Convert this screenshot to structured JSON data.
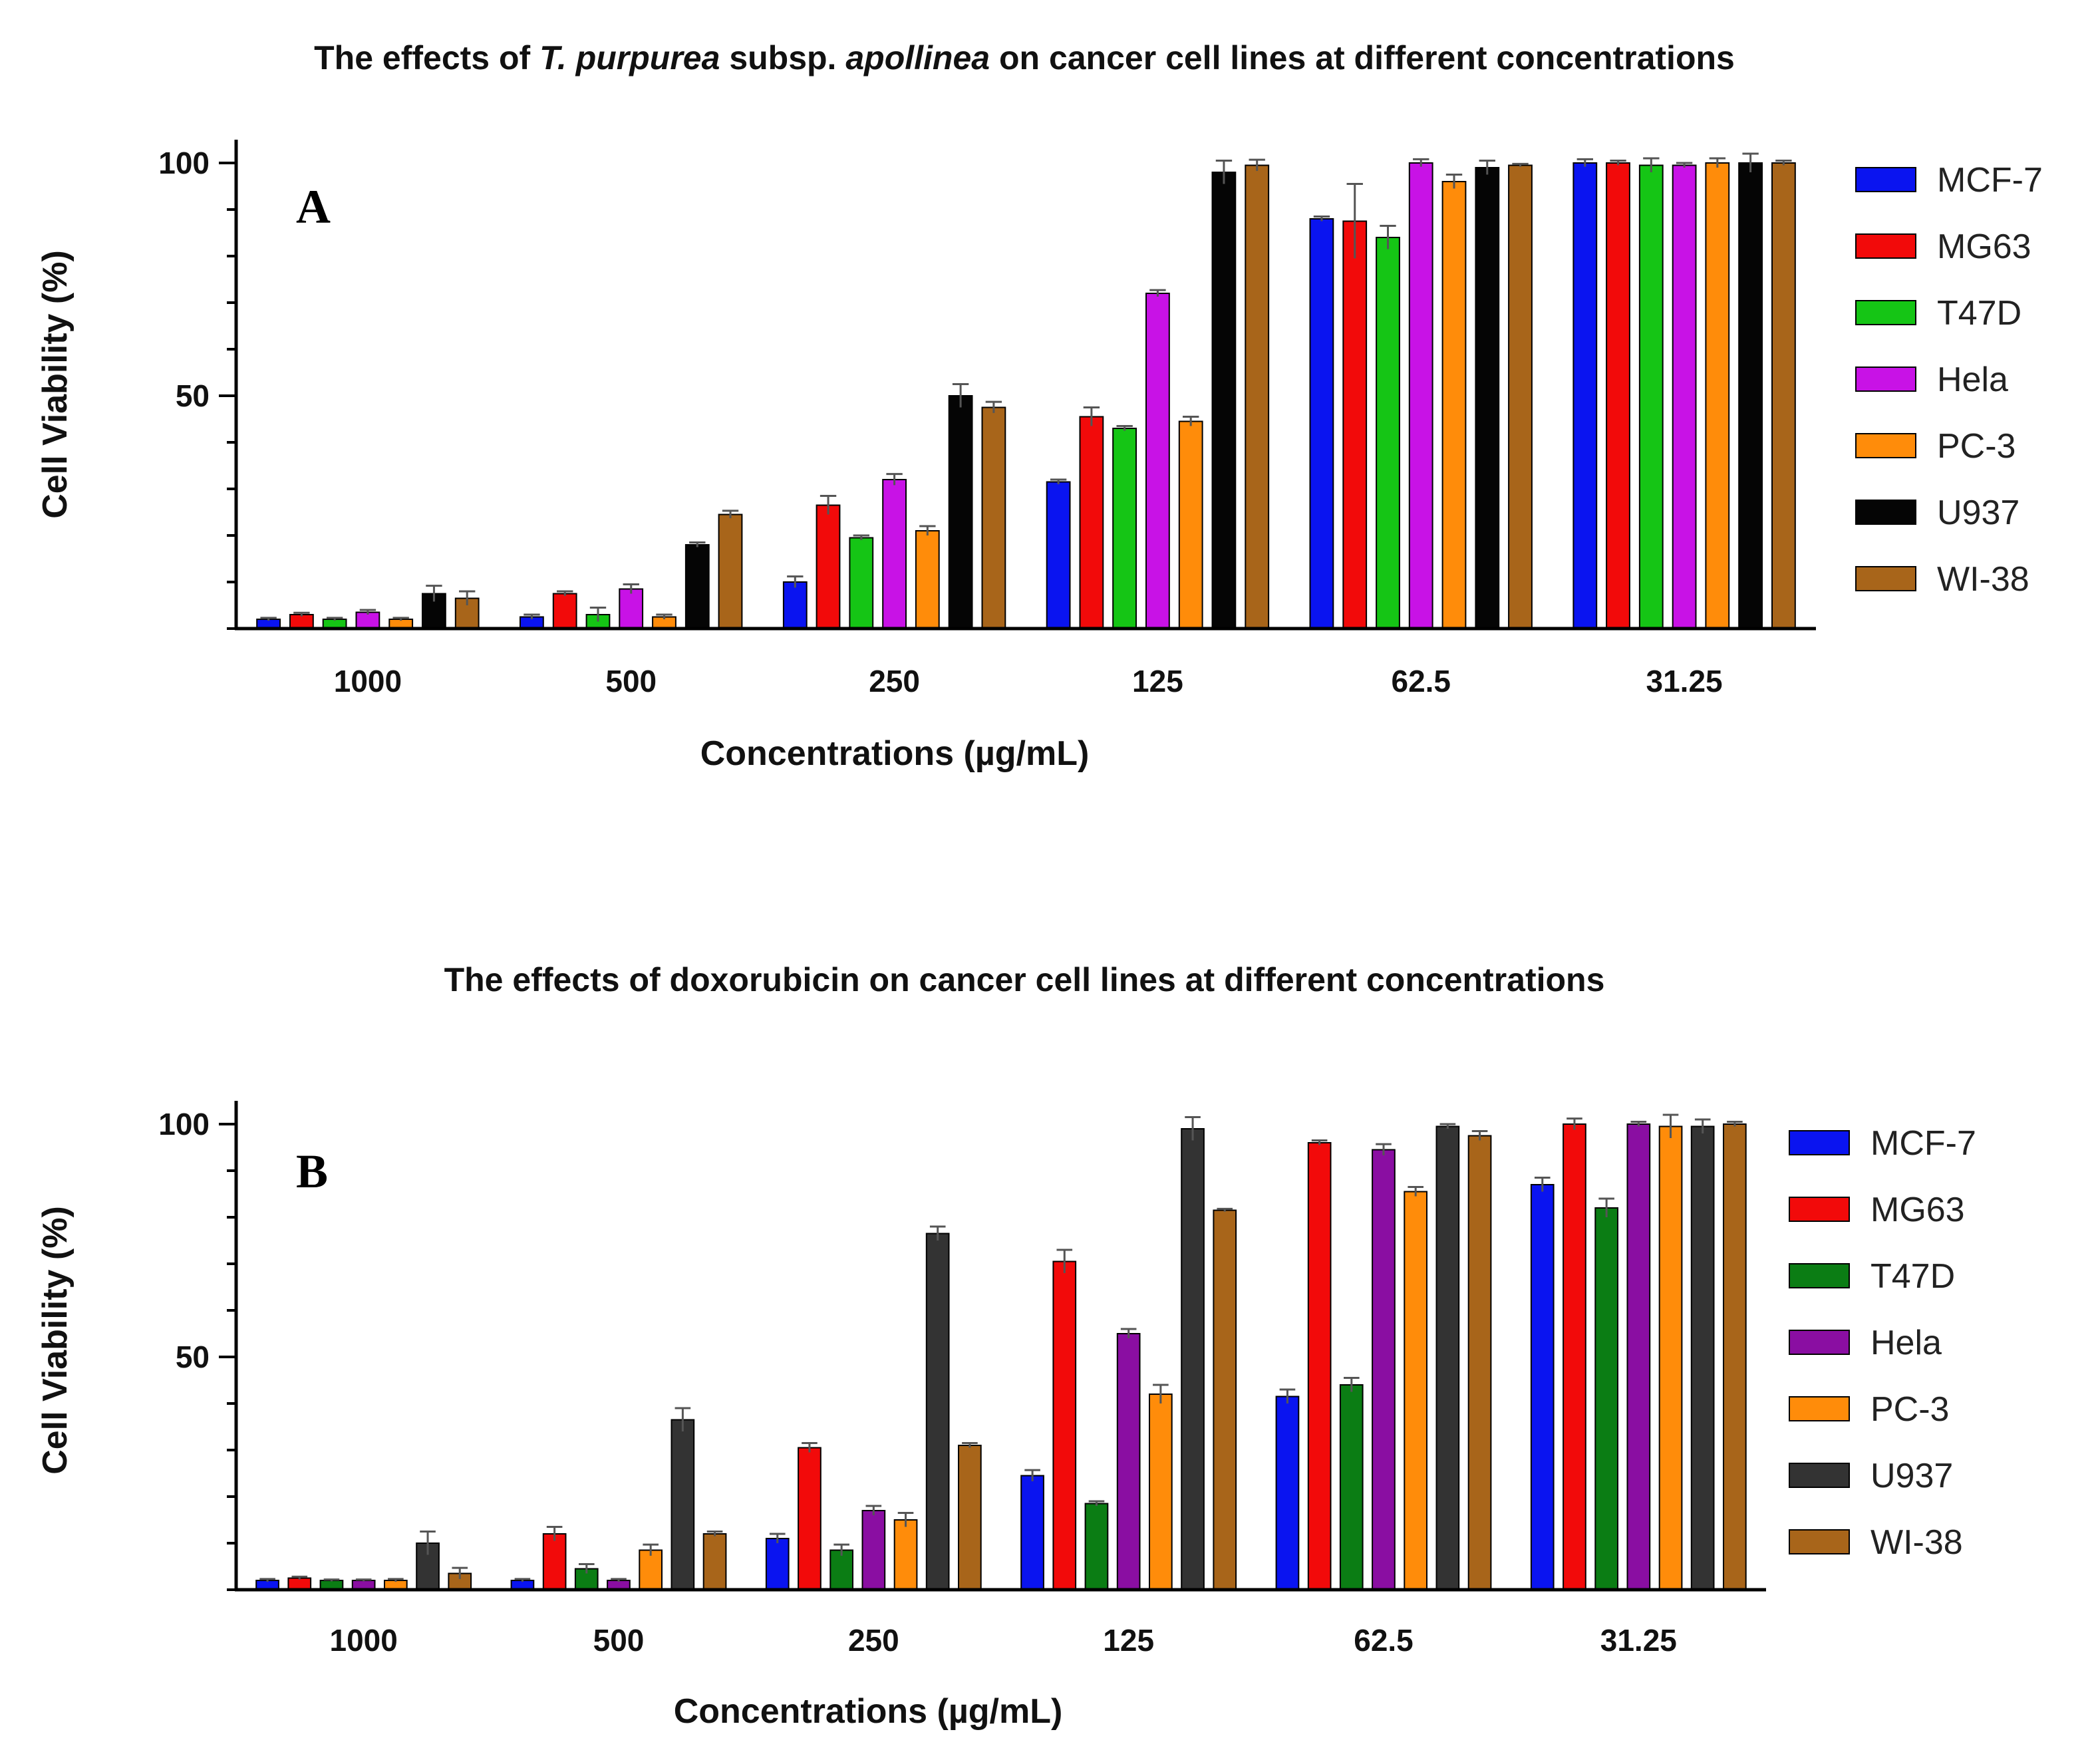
{
  "colors": {
    "MCF-7": "#0a14f0",
    "MG63": "#f20a0a",
    "T47D_A": "#15c515",
    "T47D_B": "#0b7d14",
    "Hela_A": "#c812e6",
    "Hela_B": "#8a0ea2",
    "PC-3": "#ff8c0a",
    "U937_A": "#050505",
    "U937_B": "#333333",
    "WI-38": "#a8651a"
  },
  "chart_data": [
    {
      "id": "A",
      "type": "bar",
      "title_parts": [
        {
          "text": "The effects of ",
          "italic": false
        },
        {
          "text": "T. purpurea",
          "italic": true
        },
        {
          "text": " subsp. ",
          "italic": false
        },
        {
          "text": "apollinea",
          "italic": true
        },
        {
          "text": " on cancer cell lines at different concentrations",
          "italic": false
        }
      ],
      "panel_label": "A",
      "xlabel": "Concentrations (µg/mL)",
      "ylabel": "Cell Viability (%)",
      "ylim": [
        0,
        105
      ],
      "yticks": [
        50,
        100
      ],
      "categories": [
        "1000",
        "500",
        "250",
        "125",
        "62.5",
        "31.25"
      ],
      "legend": [
        "MCF-7",
        "MG63",
        "T47D",
        "Hela",
        "PC-3",
        "U937",
        "WI-38"
      ],
      "series": [
        {
          "name": "MCF-7",
          "color_key": "MCF-7",
          "values": [
            2,
            2.5,
            10,
            31.5,
            88,
            100
          ],
          "errors": [
            0.3,
            0.5,
            1.2,
            0.5,
            0.5,
            0.8
          ]
        },
        {
          "name": "MG63",
          "color_key": "MG63",
          "values": [
            3,
            7.5,
            26.5,
            45.5,
            87.5,
            100
          ],
          "errors": [
            0.4,
            0.5,
            2,
            2,
            8,
            0.5
          ]
        },
        {
          "name": "T47D",
          "color_key": "T47D_A",
          "values": [
            2,
            3,
            19.5,
            43,
            84,
            99.5
          ],
          "errors": [
            0.3,
            1.5,
            0.5,
            0.5,
            2.5,
            1.5
          ]
        },
        {
          "name": "Hela",
          "color_key": "Hela_A",
          "values": [
            3.5,
            8.5,
            32,
            72,
            100,
            99.5
          ],
          "errors": [
            0.5,
            1,
            1.2,
            0.7,
            0.8,
            0.5
          ]
        },
        {
          "name": "PC-3",
          "color_key": "PC-3",
          "values": [
            2,
            2.5,
            21,
            44.5,
            96,
            100
          ],
          "errors": [
            0.3,
            0.5,
            1,
            1,
            1.5,
            1
          ]
        },
        {
          "name": "U937",
          "color_key": "U937_A",
          "values": [
            7.5,
            18,
            50,
            98,
            99,
            100
          ],
          "errors": [
            1.7,
            0.5,
            2.5,
            2.5,
            1.5,
            2
          ]
        },
        {
          "name": "WI-38",
          "color_key": "WI-38",
          "values": [
            6.5,
            24.5,
            47.5,
            99.5,
            99.5,
            100
          ],
          "errors": [
            1.5,
            0.8,
            1.2,
            1.2,
            0.3,
            0.5
          ]
        }
      ]
    },
    {
      "id": "B",
      "type": "bar",
      "title_parts": [
        {
          "text": "The effects of doxorubicin on cancer cell lines at different concentrations",
          "italic": false
        }
      ],
      "panel_label": "B",
      "xlabel": "Concentrations (µg/mL)",
      "ylabel": "Cell Viability (%)",
      "ylim": [
        0,
        105
      ],
      "yticks": [
        50,
        100
      ],
      "categories": [
        "1000",
        "500",
        "250",
        "125",
        "62.5",
        "31.25"
      ],
      "legend": [
        "MCF-7",
        "MG63",
        "T47D",
        "Hela",
        "PC-3",
        "U937",
        "WI-38"
      ],
      "series": [
        {
          "name": "MCF-7",
          "color_key": "MCF-7",
          "values": [
            2,
            2,
            11,
            24.5,
            41.5,
            87
          ],
          "errors": [
            0.3,
            0.3,
            1,
            1.2,
            1.5,
            1.5
          ]
        },
        {
          "name": "MG63",
          "color_key": "MG63",
          "values": [
            2.5,
            12,
            30.5,
            70.5,
            96,
            100
          ],
          "errors": [
            0.3,
            1.5,
            1,
            2.5,
            0.5,
            1.2
          ]
        },
        {
          "name": "T47D",
          "color_key": "T47D_B",
          "values": [
            2,
            4.5,
            8.5,
            18.5,
            44,
            82
          ],
          "errors": [
            0.2,
            1,
            1.2,
            0.5,
            1.5,
            2
          ]
        },
        {
          "name": "Hela",
          "color_key": "Hela_B",
          "values": [
            2,
            2,
            17,
            55,
            94.5,
            100
          ],
          "errors": [
            0.2,
            0.3,
            1,
            1,
            1.2,
            0.5
          ]
        },
        {
          "name": "PC-3",
          "color_key": "PC-3",
          "values": [
            2,
            8.5,
            15,
            42,
            85.5,
            99.5
          ],
          "errors": [
            0.3,
            1.2,
            1.5,
            2,
            1,
            2.5
          ]
        },
        {
          "name": "U937",
          "color_key": "U937_B",
          "values": [
            10,
            36.5,
            76.5,
            99,
            99.5,
            99.5
          ],
          "errors": [
            2.5,
            2.5,
            1.5,
            2.5,
            0.5,
            1.5
          ]
        },
        {
          "name": "WI-38",
          "color_key": "WI-38",
          "values": [
            3.5,
            12,
            31,
            81.5,
            97.5,
            100
          ],
          "errors": [
            1.2,
            0.5,
            0.5,
            0.3,
            1,
            0.5
          ]
        }
      ]
    }
  ]
}
